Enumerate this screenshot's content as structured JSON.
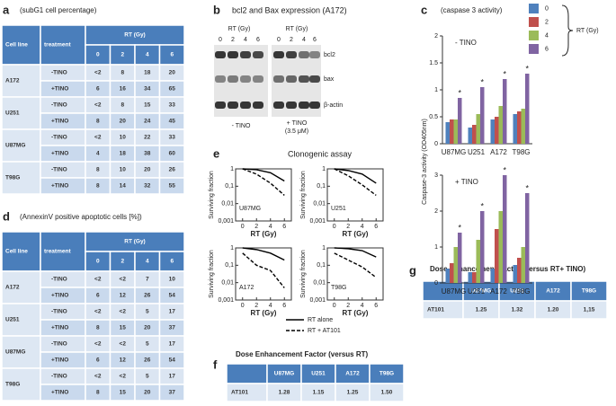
{
  "panel_labels": {
    "a": "a",
    "b": "b",
    "c": "c",
    "d": "d",
    "e": "e",
    "f": "f",
    "g": "g"
  },
  "table_a": {
    "title": "(subG1 cell percentage)",
    "header": {
      "cell_line": "Cell line",
      "treatment": "treatment",
      "dose_label": "RT (Gy)",
      "doses": [
        0,
        2,
        4,
        6
      ]
    },
    "rows": [
      {
        "cell_line": "A172",
        "lines": [
          {
            "treatment": "-TINO",
            "values": [
              "<2",
              8,
              18,
              20
            ]
          },
          {
            "treatment": "+TINO",
            "values": [
              6,
              16,
              34,
              65
            ]
          }
        ]
      },
      {
        "cell_line": "U251",
        "lines": [
          {
            "treatment": "-TINO",
            "values": [
              "<2",
              8,
              15,
              33
            ]
          },
          {
            "treatment": "+TINO",
            "values": [
              8,
              20,
              24,
              45
            ]
          }
        ]
      },
      {
        "cell_line": "U87MG",
        "lines": [
          {
            "treatment": "-TINO",
            "values": [
              "<2",
              10,
              22,
              33
            ]
          },
          {
            "treatment": "+TINO",
            "values": [
              4,
              18,
              38,
              60
            ]
          }
        ]
      },
      {
        "cell_line": "T98G",
        "lines": [
          {
            "treatment": "-TINO",
            "values": [
              8,
              10,
              20,
              26
            ]
          },
          {
            "treatment": "+TINO",
            "values": [
              8,
              14,
              32,
              55
            ]
          }
        ]
      }
    ]
  },
  "table_d": {
    "title": "(AnnexinV positive apoptotic cells [%])",
    "header": {
      "cell_line": "Cell line",
      "treatment": "treatment",
      "dose_label": "RT (Gy)",
      "doses": [
        0,
        2,
        4,
        6
      ]
    },
    "rows": [
      {
        "cell_line": "A172",
        "lines": [
          {
            "treatment": "-TINO",
            "values": [
              "<2",
              "<2",
              7,
              10
            ]
          },
          {
            "treatment": "+TINO",
            "values": [
              6,
              12,
              26,
              54
            ]
          }
        ]
      },
      {
        "cell_line": "U251",
        "lines": [
          {
            "treatment": "-TINO",
            "values": [
              "<2",
              "<2",
              5,
              17
            ]
          },
          {
            "treatment": "+TINO",
            "values": [
              8,
              15,
              20,
              37
            ]
          }
        ]
      },
      {
        "cell_line": "U87MG",
        "lines": [
          {
            "treatment": "-TINO",
            "values": [
              "<2",
              "<2",
              5,
              17
            ]
          },
          {
            "treatment": "+TINO",
            "values": [
              6,
              12,
              26,
              54
            ]
          }
        ]
      },
      {
        "cell_line": "T98G",
        "lines": [
          {
            "treatment": "-TINO",
            "values": [
              "<2",
              "<2",
              5,
              17
            ]
          },
          {
            "treatment": "+TINO",
            "values": [
              8,
              15,
              20,
              37
            ]
          }
        ]
      }
    ]
  },
  "blot": {
    "title": "bcl2 and Bax expression (A172)",
    "dose_label": "RT (Gy)",
    "doses": [
      0,
      2,
      4,
      6
    ],
    "proteins": [
      "bcl2",
      "bax",
      "β-actin"
    ],
    "conditions": [
      "- TINO",
      "+ TINO"
    ],
    "concentration": "(3.5 μM)"
  },
  "table_f": {
    "title": "Dose Enhancement Factor (versus RT)",
    "columns": [
      "U87MG",
      "U251",
      "A172",
      "T98G"
    ],
    "row_label": "AT101",
    "values": [
      1.28,
      1.15,
      1.25,
      "1.50"
    ]
  },
  "table_g": {
    "title": "Dose Enhancement Factor (versus RT+ TINO)",
    "columns": [
      "U87MG",
      "U251",
      "A172",
      "T98G"
    ],
    "row_label": "AT101",
    "values": [
      1.25,
      1.32,
      "1.20",
      "1,15"
    ]
  },
  "chart_data": [
    {
      "type": "bar",
      "title": "(caspase 3 activity)",
      "ylabel": "Caspase-3 activity (OD405nm)",
      "legend_title": "RT (Gy)",
      "star": "*",
      "categories": [
        "U87MG",
        "U251",
        "A172",
        "T98G"
      ],
      "series": [
        {
          "name": "0",
          "color": "#4f81bd"
        },
        {
          "name": "2",
          "color": "#c0504d"
        },
        {
          "name": "4",
          "color": "#9bbb59"
        },
        {
          "name": "6",
          "color": "#8064a2"
        }
      ],
      "panels": [
        {
          "annotation": "- TINO",
          "ylim": [
            0,
            2
          ],
          "yticks": [
            0,
            0.5,
            1,
            1.5,
            2
          ],
          "values": [
            [
              0.4,
              0.3,
              0.45,
              0.55
            ],
            [
              0.45,
              0.35,
              0.5,
              0.6
            ],
            [
              0.45,
              0.55,
              0.7,
              0.65
            ],
            [
              0.85,
              1.05,
              1.2,
              1.3
            ]
          ]
        },
        {
          "annotation": "+ TINO",
          "ylim": [
            0,
            3
          ],
          "yticks": [
            0,
            1,
            2,
            3
          ],
          "values": [
            [
              0.4,
              0.3,
              0.4,
              0.5
            ],
            [
              0.55,
              0.3,
              1.5,
              0.7
            ],
            [
              1.0,
              1.2,
              2.0,
              1.0
            ],
            [
              1.4,
              2.0,
              3.0,
              2.5
            ]
          ]
        }
      ]
    },
    {
      "type": "line",
      "title": "Clonogenic assay",
      "xlabel": "RT (Gy)",
      "ylabel": "Surviving fraction",
      "log_y": true,
      "x": [
        0,
        2,
        4,
        6
      ],
      "xlim": [
        -1,
        7
      ],
      "xticks": [
        0,
        2,
        4,
        6
      ],
      "ylim": [
        0.001,
        1
      ],
      "yticks": [
        1,
        {
          "value": 0.1,
          "label": "0,1"
        },
        {
          "value": 0.01,
          "label": "0,01"
        },
        {
          "value": 0.001,
          "label": "0,001"
        }
      ],
      "series": [
        {
          "name": "RT alone",
          "color": "#000000",
          "dash": "solid"
        },
        {
          "name": "RT + AT101",
          "color": "#000000",
          "dash": "dashed"
        }
      ],
      "panels": [
        {
          "label": "U87MG",
          "values": [
            [
              1,
              0.9,
              0.6,
              0.2
            ],
            [
              1,
              0.5,
              0.15,
              0.03
            ]
          ]
        },
        {
          "label": "U251",
          "values": [
            [
              1,
              0.8,
              0.5,
              0.15
            ],
            [
              1,
              0.4,
              0.12,
              0.03
            ]
          ]
        },
        {
          "label": "A172",
          "values": [
            [
              1,
              0.8,
              0.5,
              0.2
            ],
            [
              0.5,
              0.1,
              0.05,
              0.005
            ]
          ]
        },
        {
          "label": "T98G",
          "values": [
            [
              1,
              0.9,
              0.7,
              0.3
            ],
            [
              0.5,
              0.2,
              0.08,
              0.02
            ]
          ]
        }
      ]
    }
  ]
}
